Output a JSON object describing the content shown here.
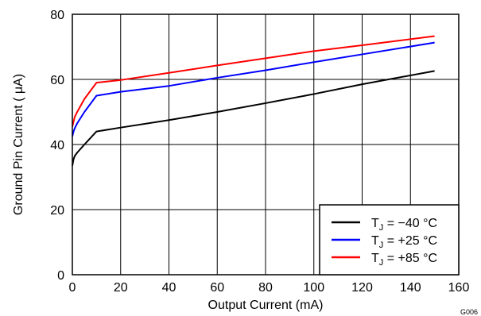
{
  "chart_data": {
    "type": "line",
    "xlabel": "Output Current (mA)",
    "ylabel": "Ground Pin Current ( μA)",
    "xlim": [
      0,
      160
    ],
    "ylim": [
      0,
      80
    ],
    "x_ticks": [
      "0",
      "20",
      "40",
      "60",
      "80",
      "100",
      "120",
      "140",
      "160"
    ],
    "y_ticks": [
      "0",
      "20",
      "40",
      "60",
      "80"
    ],
    "grid": true,
    "legend_position": "bottom-right",
    "figure_code": "G006",
    "series": [
      {
        "name": "T_J = −40 °C",
        "name_main": "T",
        "name_sub": "J",
        "name_rest": " = −40 °C",
        "color": "#000000",
        "x": [
          0,
          0.5,
          1,
          2,
          5,
          10,
          20,
          40,
          60,
          80,
          100,
          120,
          150
        ],
        "y": [
          33.5,
          35.5,
          36.5,
          37.5,
          40,
          44,
          45.2,
          47.5,
          50,
          52.7,
          55.5,
          58.5,
          62.6
        ]
      },
      {
        "name": "T_J = +25 °C",
        "name_main": "T",
        "name_sub": "J",
        "name_rest": " = +25 °C",
        "color": "#0000ff",
        "x": [
          0,
          0.5,
          1,
          2,
          5,
          10,
          20,
          40,
          60,
          80,
          100,
          120,
          150
        ],
        "y": [
          42.5,
          44,
          45,
          46.5,
          50,
          55,
          56.2,
          58,
          60.5,
          62.8,
          65.3,
          67.7,
          71.3
        ]
      },
      {
        "name": "T_J = +85 °C",
        "name_main": "T",
        "name_sub": "J",
        "name_rest": " = +85 °C",
        "color": "#ff0000",
        "x": [
          0,
          0.5,
          1,
          2,
          5,
          10,
          20,
          40,
          60,
          80,
          100,
          120,
          150
        ],
        "y": [
          45.5,
          47,
          48.5,
          50,
          54,
          59,
          59.8,
          62,
          64.3,
          66.5,
          68.7,
          70.5,
          73.3
        ]
      }
    ]
  }
}
